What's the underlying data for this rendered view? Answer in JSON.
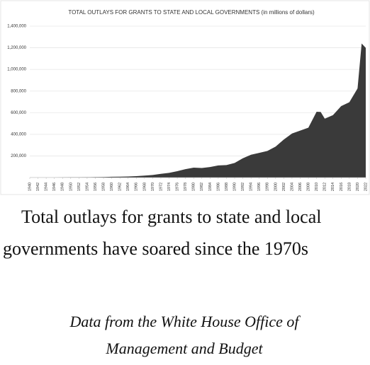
{
  "chart_data": {
    "type": "area",
    "title": "TOTAL OUTLAYS FOR GRANTS TO STATE AND LOCAL GOVERNMENTS (in millions of dollars)",
    "x": [
      1940,
      1942,
      1944,
      1946,
      1948,
      1950,
      1952,
      1954,
      1956,
      1958,
      1960,
      1962,
      1964,
      1966,
      1968,
      1970,
      1972,
      1974,
      1976,
      1978,
      1980,
      1982,
      1984,
      1986,
      1988,
      1990,
      1992,
      1994,
      1996,
      1998,
      2000,
      2002,
      2004,
      2006,
      2008,
      2010,
      2011,
      2012,
      2014,
      2016,
      2018,
      2020,
      2021,
      2022
    ],
    "values": [
      872,
      887,
      911,
      1000,
      1700,
      2253,
      2600,
      2900,
      3700,
      4900,
      7019,
      7900,
      10100,
      12900,
      18100,
      24065,
      34400,
      43400,
      59100,
      77900,
      91385,
      88200,
      97600,
      112300,
      115300,
      135325,
      178100,
      210600,
      227800,
      246100,
      285874,
      351500,
      407500,
      434100,
      461300,
      608400,
      606800,
      544600,
      577000,
      660800,
      696500,
      824000,
      1240000,
      1200000
    ],
    "color": "#3a3a3a",
    "xlim": [
      1940,
      2022
    ],
    "xticks": [
      1940,
      1942,
      1944,
      1946,
      1948,
      1950,
      1952,
      1954,
      1956,
      1958,
      1960,
      1962,
      1964,
      1966,
      1968,
      1970,
      1972,
      1974,
      1976,
      1978,
      1980,
      1982,
      1984,
      1986,
      1988,
      1990,
      1992,
      1994,
      1996,
      1998,
      2000,
      2002,
      2004,
      2006,
      2008,
      2010,
      2012,
      2014,
      2016,
      2018,
      2020,
      2022
    ],
    "ylim": [
      0,
      1400000
    ],
    "yticks": [
      {
        "value": 200000,
        "label": "200,000"
      },
      {
        "value": 400000,
        "label": "400,000"
      },
      {
        "value": 600000,
        "label": "600,000"
      },
      {
        "value": 800000,
        "label": "800,000"
      },
      {
        "value": 1000000,
        "label": "1,000,000"
      },
      {
        "value": 1200000,
        "label": "1,200,000"
      },
      {
        "value": 1400000,
        "label": "1,400,000"
      }
    ],
    "grid": true
  },
  "caption": "Total outlays for grants to state and local governments have soared since the 1970s",
  "source": "Data from the White House Office of Management and Budget"
}
